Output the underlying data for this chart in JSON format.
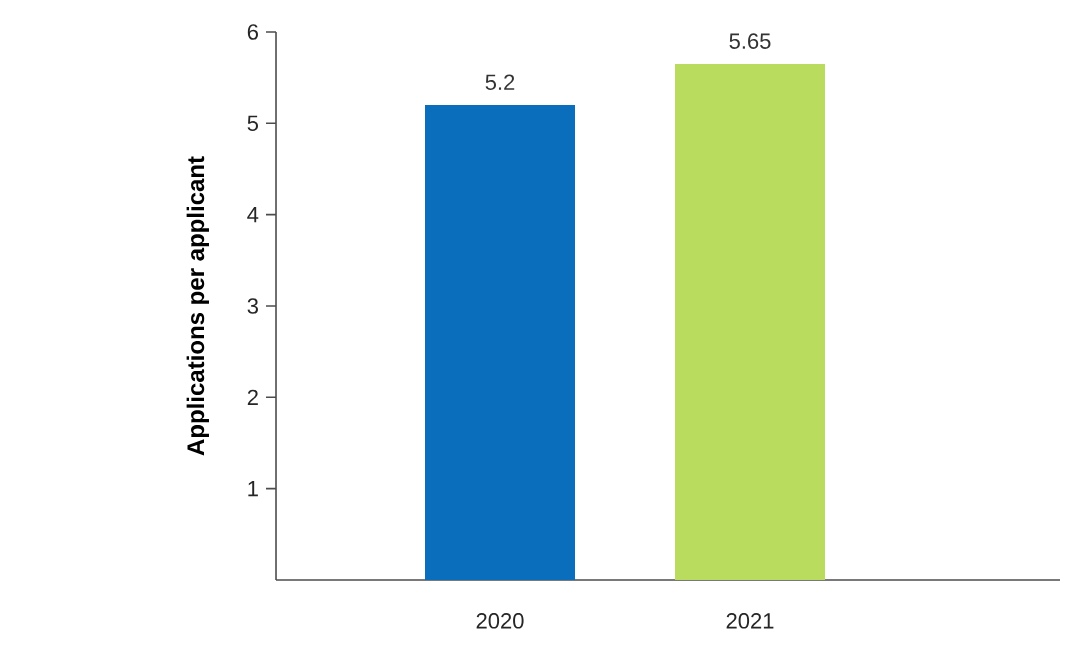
{
  "chart_data": {
    "type": "bar",
    "ylabel": "Applications per applicant",
    "categories": [
      "2020",
      "2021"
    ],
    "values": [
      5.2,
      5.65
    ],
    "colors": [
      "#0a6ebd",
      "#badc5e"
    ],
    "ylim": [
      0,
      6
    ],
    "yticks": [
      1,
      2,
      3,
      4,
      5,
      6
    ],
    "data_labels": true,
    "grid": false
  }
}
